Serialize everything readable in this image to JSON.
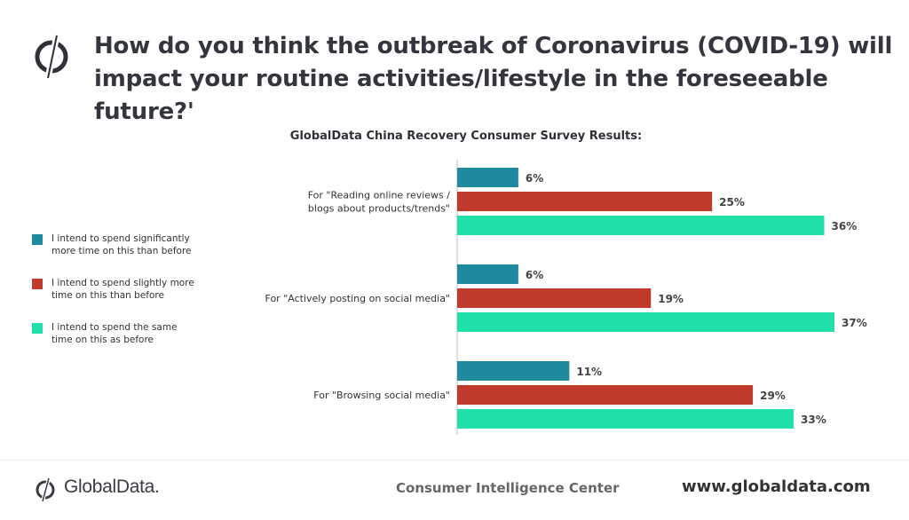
{
  "header": {
    "title": "How do you think the outbreak of Coronavirus (COVID-19) will\nimpact your routine activities/lifestyle in the foreseeable future?'",
    "logo_icon": "globaldata-logo-icon"
  },
  "colors": {
    "significantly_more": "#1e8a9e",
    "slightly_more": "#c0392b",
    "same": "#21dfa8"
  },
  "legend": [
    {
      "label": "I intend to spend significantly\nmore time on this than before",
      "color": "#1e8a9e"
    },
    {
      "label": "I intend to spend slightly more\ntime on this than before",
      "color": "#c0392b"
    },
    {
      "label": "I intend to spend the same\ntime on this as before",
      "color": "#21dfa8"
    }
  ],
  "chart_data": {
    "type": "bar",
    "orientation": "horizontal",
    "title": "GlobalData China Recovery Consumer Survey Results:",
    "categories": [
      [
        "For \"Reading online reviews /",
        "blogs about products/trends\""
      ],
      [
        "For \"Actively posting on social media\""
      ],
      [
        "For \"Browsing social media\""
      ]
    ],
    "series": [
      {
        "name": "I intend to spend significantly more time on this than before",
        "values": [
          6,
          6,
          11
        ],
        "color": "#1e8a9e"
      },
      {
        "name": "I intend to spend slightly more time on this than before",
        "values": [
          25,
          19,
          29
        ],
        "color": "#c0392b"
      },
      {
        "name": "I intend to spend the same time on this as before",
        "values": [
          36,
          37,
          33
        ],
        "color": "#21dfa8"
      }
    ],
    "value_suffix": "%",
    "xlim": [
      0,
      37
    ],
    "legend_position": "left"
  },
  "footer": {
    "brand": "GlobalData.",
    "center": "Consumer Intelligence Center",
    "right": "www.globaldata.com"
  }
}
